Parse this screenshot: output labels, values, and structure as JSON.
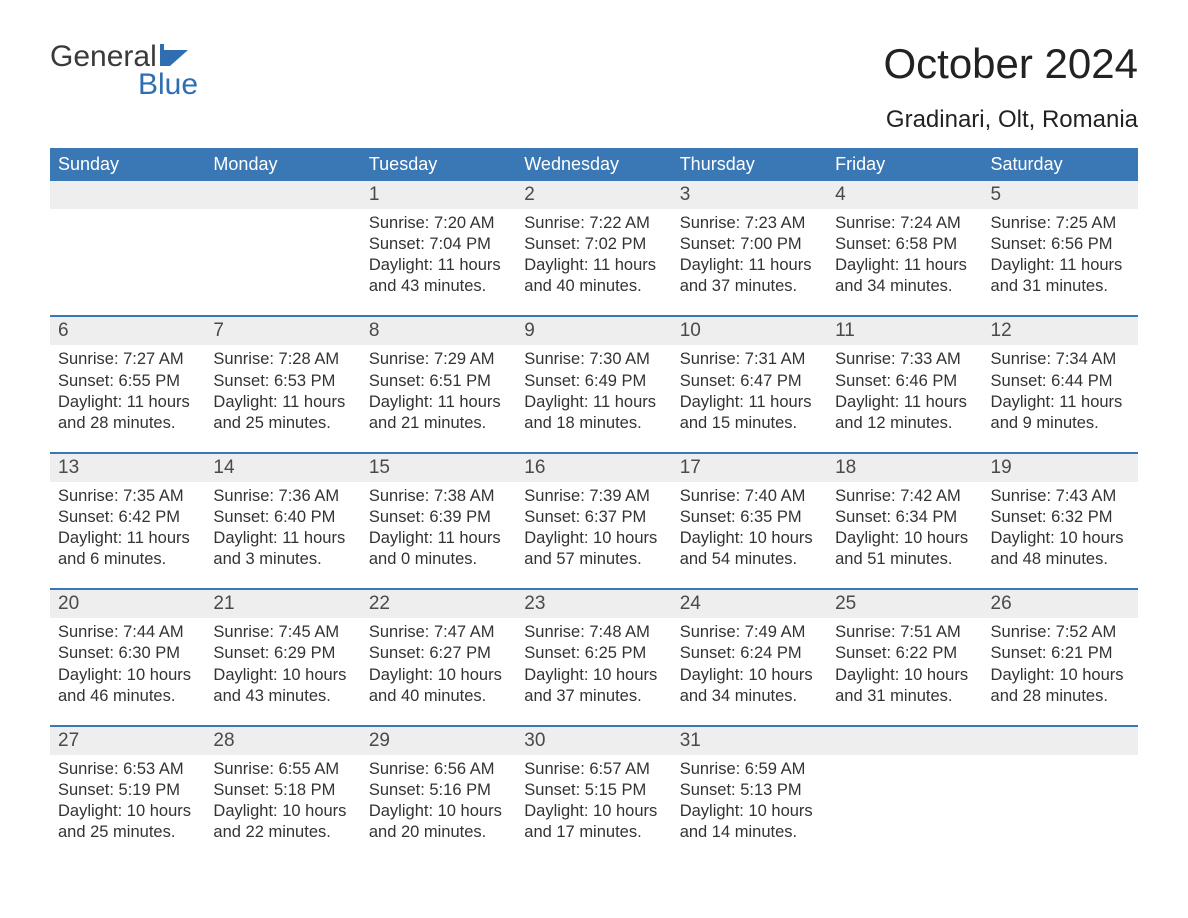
{
  "logo": {
    "line1": "General",
    "line2": "Blue",
    "flag_color": "#2f6fb1"
  },
  "title": "October 2024",
  "location": "Gradinari, Olt, Romania",
  "colors": {
    "header_bg": "#3a78b5",
    "header_text": "#ffffff",
    "daynum_bg": "#eeeeee",
    "body_text": "#333333",
    "accent_line": "#3a78b5",
    "page_bg": "#ffffff"
  },
  "typography": {
    "title_fontsize": 42,
    "location_fontsize": 24,
    "dayheader_fontsize": 18,
    "daynum_fontsize": 19,
    "detail_fontsize": 16.5,
    "font_family": "Arial"
  },
  "layout": {
    "columns": 7,
    "rows": 5,
    "week_start": "Sunday"
  },
  "day_headers": [
    "Sunday",
    "Monday",
    "Tuesday",
    "Wednesday",
    "Thursday",
    "Friday",
    "Saturday"
  ],
  "weeks": [
    [
      {
        "num": "",
        "sunrise": "",
        "sunset": "",
        "daylight": ""
      },
      {
        "num": "",
        "sunrise": "",
        "sunset": "",
        "daylight": ""
      },
      {
        "num": "1",
        "sunrise": "Sunrise: 7:20 AM",
        "sunset": "Sunset: 7:04 PM",
        "daylight": "Daylight: 11 hours and 43 minutes."
      },
      {
        "num": "2",
        "sunrise": "Sunrise: 7:22 AM",
        "sunset": "Sunset: 7:02 PM",
        "daylight": "Daylight: 11 hours and 40 minutes."
      },
      {
        "num": "3",
        "sunrise": "Sunrise: 7:23 AM",
        "sunset": "Sunset: 7:00 PM",
        "daylight": "Daylight: 11 hours and 37 minutes."
      },
      {
        "num": "4",
        "sunrise": "Sunrise: 7:24 AM",
        "sunset": "Sunset: 6:58 PM",
        "daylight": "Daylight: 11 hours and 34 minutes."
      },
      {
        "num": "5",
        "sunrise": "Sunrise: 7:25 AM",
        "sunset": "Sunset: 6:56 PM",
        "daylight": "Daylight: 11 hours and 31 minutes."
      }
    ],
    [
      {
        "num": "6",
        "sunrise": "Sunrise: 7:27 AM",
        "sunset": "Sunset: 6:55 PM",
        "daylight": "Daylight: 11 hours and 28 minutes."
      },
      {
        "num": "7",
        "sunrise": "Sunrise: 7:28 AM",
        "sunset": "Sunset: 6:53 PM",
        "daylight": "Daylight: 11 hours and 25 minutes."
      },
      {
        "num": "8",
        "sunrise": "Sunrise: 7:29 AM",
        "sunset": "Sunset: 6:51 PM",
        "daylight": "Daylight: 11 hours and 21 minutes."
      },
      {
        "num": "9",
        "sunrise": "Sunrise: 7:30 AM",
        "sunset": "Sunset: 6:49 PM",
        "daylight": "Daylight: 11 hours and 18 minutes."
      },
      {
        "num": "10",
        "sunrise": "Sunrise: 7:31 AM",
        "sunset": "Sunset: 6:47 PM",
        "daylight": "Daylight: 11 hours and 15 minutes."
      },
      {
        "num": "11",
        "sunrise": "Sunrise: 7:33 AM",
        "sunset": "Sunset: 6:46 PM",
        "daylight": "Daylight: 11 hours and 12 minutes."
      },
      {
        "num": "12",
        "sunrise": "Sunrise: 7:34 AM",
        "sunset": "Sunset: 6:44 PM",
        "daylight": "Daylight: 11 hours and 9 minutes."
      }
    ],
    [
      {
        "num": "13",
        "sunrise": "Sunrise: 7:35 AM",
        "sunset": "Sunset: 6:42 PM",
        "daylight": "Daylight: 11 hours and 6 minutes."
      },
      {
        "num": "14",
        "sunrise": "Sunrise: 7:36 AM",
        "sunset": "Sunset: 6:40 PM",
        "daylight": "Daylight: 11 hours and 3 minutes."
      },
      {
        "num": "15",
        "sunrise": "Sunrise: 7:38 AM",
        "sunset": "Sunset: 6:39 PM",
        "daylight": "Daylight: 11 hours and 0 minutes."
      },
      {
        "num": "16",
        "sunrise": "Sunrise: 7:39 AM",
        "sunset": "Sunset: 6:37 PM",
        "daylight": "Daylight: 10 hours and 57 minutes."
      },
      {
        "num": "17",
        "sunrise": "Sunrise: 7:40 AM",
        "sunset": "Sunset: 6:35 PM",
        "daylight": "Daylight: 10 hours and 54 minutes."
      },
      {
        "num": "18",
        "sunrise": "Sunrise: 7:42 AM",
        "sunset": "Sunset: 6:34 PM",
        "daylight": "Daylight: 10 hours and 51 minutes."
      },
      {
        "num": "19",
        "sunrise": "Sunrise: 7:43 AM",
        "sunset": "Sunset: 6:32 PM",
        "daylight": "Daylight: 10 hours and 48 minutes."
      }
    ],
    [
      {
        "num": "20",
        "sunrise": "Sunrise: 7:44 AM",
        "sunset": "Sunset: 6:30 PM",
        "daylight": "Daylight: 10 hours and 46 minutes."
      },
      {
        "num": "21",
        "sunrise": "Sunrise: 7:45 AM",
        "sunset": "Sunset: 6:29 PM",
        "daylight": "Daylight: 10 hours and 43 minutes."
      },
      {
        "num": "22",
        "sunrise": "Sunrise: 7:47 AM",
        "sunset": "Sunset: 6:27 PM",
        "daylight": "Daylight: 10 hours and 40 minutes."
      },
      {
        "num": "23",
        "sunrise": "Sunrise: 7:48 AM",
        "sunset": "Sunset: 6:25 PM",
        "daylight": "Daylight: 10 hours and 37 minutes."
      },
      {
        "num": "24",
        "sunrise": "Sunrise: 7:49 AM",
        "sunset": "Sunset: 6:24 PM",
        "daylight": "Daylight: 10 hours and 34 minutes."
      },
      {
        "num": "25",
        "sunrise": "Sunrise: 7:51 AM",
        "sunset": "Sunset: 6:22 PM",
        "daylight": "Daylight: 10 hours and 31 minutes."
      },
      {
        "num": "26",
        "sunrise": "Sunrise: 7:52 AM",
        "sunset": "Sunset: 6:21 PM",
        "daylight": "Daylight: 10 hours and 28 minutes."
      }
    ],
    [
      {
        "num": "27",
        "sunrise": "Sunrise: 6:53 AM",
        "sunset": "Sunset: 5:19 PM",
        "daylight": "Daylight: 10 hours and 25 minutes."
      },
      {
        "num": "28",
        "sunrise": "Sunrise: 6:55 AM",
        "sunset": "Sunset: 5:18 PM",
        "daylight": "Daylight: 10 hours and 22 minutes."
      },
      {
        "num": "29",
        "sunrise": "Sunrise: 6:56 AM",
        "sunset": "Sunset: 5:16 PM",
        "daylight": "Daylight: 10 hours and 20 minutes."
      },
      {
        "num": "30",
        "sunrise": "Sunrise: 6:57 AM",
        "sunset": "Sunset: 5:15 PM",
        "daylight": "Daylight: 10 hours and 17 minutes."
      },
      {
        "num": "31",
        "sunrise": "Sunrise: 6:59 AM",
        "sunset": "Sunset: 5:13 PM",
        "daylight": "Daylight: 10 hours and 14 minutes."
      },
      {
        "num": "",
        "sunrise": "",
        "sunset": "",
        "daylight": ""
      },
      {
        "num": "",
        "sunrise": "",
        "sunset": "",
        "daylight": ""
      }
    ]
  ]
}
